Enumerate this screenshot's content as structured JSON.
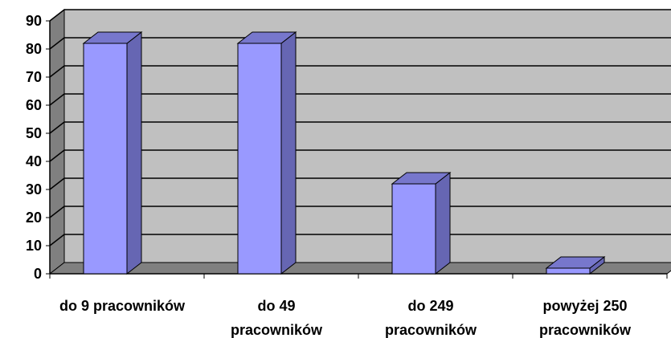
{
  "chart_data": {
    "type": "bar",
    "style": "3d",
    "categories": [
      [
        "do 9 pracowników"
      ],
      [
        "do 49",
        "pracowników"
      ],
      [
        "do 249",
        "pracowników"
      ],
      [
        "powyżej 250",
        "pracowników"
      ]
    ],
    "values": [
      82,
      82,
      32,
      2
    ],
    "ylim": [
      0,
      90
    ],
    "yticks": [
      0,
      10,
      20,
      30,
      40,
      50,
      60,
      70,
      80,
      90
    ],
    "grid": true,
    "legend": "none",
    "colors": {
      "bar_front": "#9999FF",
      "bar_side": "#6666B3",
      "bar_top": "#7777CC",
      "back_wall": "#C0C0C0",
      "side_wall": "#808080",
      "floor": "#808080",
      "outline": "#000000"
    }
  }
}
